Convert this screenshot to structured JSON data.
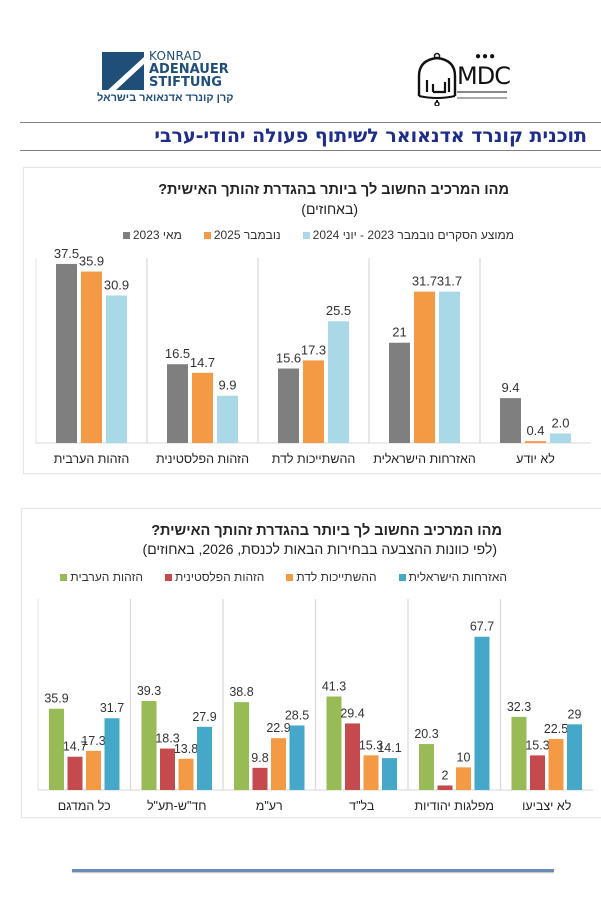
{
  "logos": {
    "kas": {
      "line1": "KONRAD",
      "line2": "ADENAUER",
      "line3": "STIFTUNG",
      "hebrew": "קרן קונרד אדנאואר בישראל",
      "brand_color": "#1f4e79"
    },
    "mdc": {
      "text": "MDC",
      "circles": "●●●"
    }
  },
  "header": {
    "title": "תוכנית קונרד אדנאואר לשיתוף פעולה יהודי-ערבי",
    "title_color": "#1e2d8c"
  },
  "chart_data": [
    {
      "type": "bar",
      "title": "מהו המרכיב החשוב לך ביותר בהגדרת זהותך האישית?",
      "subtitle": "(באחוזים)",
      "xlabel": "",
      "ylabel": "",
      "ylim": [
        0,
        40
      ],
      "grid": false,
      "legend_position": "top",
      "categories": [
        "הזהות הערבית",
        "הזהות הפלסטינית",
        "ההשתייכות לדת",
        "האזרחות הישראלית",
        "לא יודע"
      ],
      "series": [
        {
          "name": "מאי 2023",
          "color": "#7f7f7f",
          "values": [
            37.5,
            16.5,
            15.6,
            21,
            9.4
          ],
          "labels": [
            "37.5",
            "16.5",
            "15.6",
            "21",
            "9.4"
          ]
        },
        {
          "name": "נובמבר 2025",
          "color": "#f59a44",
          "values": [
            35.9,
            14.7,
            17.3,
            31.7,
            0.4
          ],
          "labels": [
            "35.9",
            "14.7",
            "17.3",
            "31.7",
            "0.4"
          ]
        },
        {
          "name": "ממוצע הסקרים נובמבר 2023 - יוני 2024",
          "color": "#a9d8e6",
          "values": [
            30.9,
            9.9,
            25.5,
            31.7,
            2.0
          ],
          "labels": [
            "30.9",
            "9.9",
            "25.5",
            "31.7",
            "2.0"
          ]
        }
      ]
    },
    {
      "type": "bar",
      "title": "מהו המרכיב החשוב לך ביותר בהגדרת זהותך האישית?",
      "subtitle": "(לפי כוונות ההצבעה בבחירות הבאות לכנסת, 2026, באחוזים)",
      "xlabel": "",
      "ylabel": "",
      "ylim": [
        0,
        72
      ],
      "grid": false,
      "legend_position": "top",
      "categories": [
        "כל המדגם",
        "חד\"ש-תע\"ל",
        "רע\"מ",
        "בל\"ד",
        "מפלגות יהודיות",
        "לא יצביעו"
      ],
      "series": [
        {
          "name": "הזהות הערבית",
          "color": "#98bb55",
          "values": [
            35.9,
            39.3,
            38.8,
            41.3,
            20.3,
            32.3
          ],
          "labels": [
            "35.9",
            "39.3",
            "38.8",
            "41.3",
            "20.3",
            "32.3"
          ]
        },
        {
          "name": "הזהות הפלסטינית",
          "color": "#c44a4d",
          "values": [
            14.7,
            18.3,
            9.8,
            29.4,
            2,
            15.3
          ],
          "labels": [
            "14.7",
            "18.3",
            "9.8",
            "29.4",
            "2",
            "15.3"
          ]
        },
        {
          "name": "ההשתייכות לדת",
          "color": "#f59a44",
          "values": [
            17.3,
            13.8,
            22.9,
            15.3,
            10,
            22.5
          ],
          "labels": [
            "17.3",
            "13.8",
            "22.9",
            "15.3",
            "10",
            "22.5"
          ]
        },
        {
          "name": "האזרחות הישראלית",
          "color": "#45a8c8",
          "values": [
            31.7,
            27.9,
            28.5,
            14.1,
            67.7,
            29
          ],
          "labels": [
            "31.7",
            "27.9",
            "28.5",
            "14.1",
            "67.7",
            "29"
          ]
        }
      ]
    }
  ]
}
